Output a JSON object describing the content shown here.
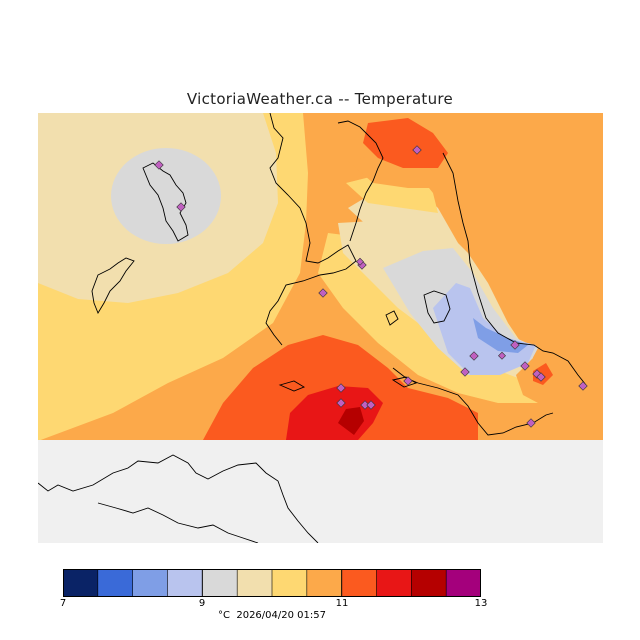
{
  "title": "VictoriaWeather.ca -- Temperature",
  "legend": {
    "unit": "°C",
    "timestamp": "2026/04/20 01:57",
    "ticks": [
      "7",
      "9",
      "11",
      "13"
    ],
    "colors": [
      "#0a2366",
      "#3a6ad8",
      "#7f9ee6",
      "#b9c4ee",
      "#d9d9d9",
      "#f2dfae",
      "#fed872",
      "#fca94a",
      "#fb5a1f",
      "#e81616",
      "#b50000",
      "#a4007c"
    ]
  },
  "map": {
    "background_color": "#f0f0f0",
    "land_outline_color": "#000000",
    "station_marker_color": "#c060c0",
    "station_count": 20
  }
}
